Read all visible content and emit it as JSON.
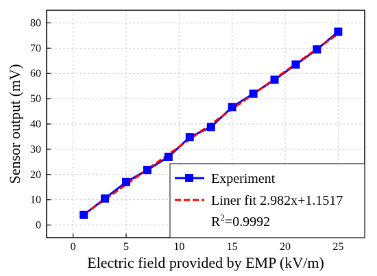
{
  "chart_data": {
    "type": "line",
    "xlabel": "Electric field provided by EMP (kV/m)",
    "ylabel": "Sensor output (mV)",
    "xlim": [
      -2.5,
      27.5
    ],
    "ylim": [
      -5,
      85
    ],
    "xticks": [
      0,
      5,
      10,
      15,
      20,
      25
    ],
    "yticks": [
      0,
      10,
      20,
      30,
      40,
      50,
      60,
      70,
      80
    ],
    "grid": true,
    "grid_style": "dashed",
    "legend_position": "bottom-right",
    "series": [
      {
        "name": "Experiment",
        "color": "#0000ff",
        "marker": "square",
        "x": [
          1,
          3,
          5,
          7,
          9,
          11,
          13,
          15,
          17,
          19,
          21,
          23,
          25
        ],
        "y": [
          4.0,
          10.5,
          17.0,
          21.8,
          27.0,
          34.8,
          38.8,
          46.7,
          52.0,
          57.5,
          63.5,
          69.5,
          76.5
        ]
      },
      {
        "name": "Liner fit 2.982x+1.1517",
        "color": "#ff0000",
        "style": "dashed",
        "slope": 2.982,
        "intercept": 1.1517,
        "x_range": [
          1,
          25
        ]
      }
    ],
    "annotation": {
      "prefix": "R",
      "sup": "2",
      "suffix": "=0.9992"
    }
  }
}
